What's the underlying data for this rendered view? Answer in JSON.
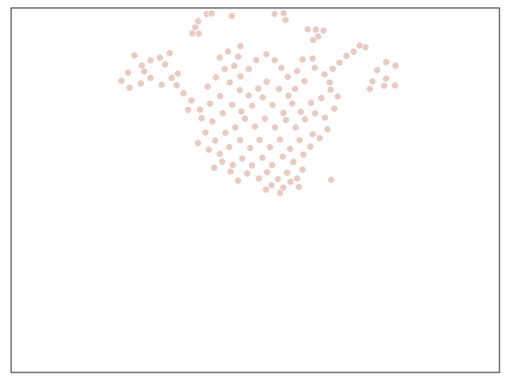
{
  "chart_data": {
    "type": "scatter",
    "title": "",
    "xlabel": "",
    "ylabel": "",
    "xlim": [
      0,
      100
    ],
    "ylim": [
      0,
      100
    ],
    "grid": false,
    "legend": "none",
    "ticks_visible": false,
    "series": [
      {
        "marker_color": "#e8cbc2",
        "marker_edge_color": "#ffffff",
        "points": [
          [
            40.07,
            98.3
          ],
          [
            41.05,
            98.48
          ],
          [
            45.17,
            97.79
          ],
          [
            38.28,
            96.32
          ],
          [
            37.72,
            94.71
          ],
          [
            38.44,
            92.96
          ],
          [
            37.12,
            93.01
          ],
          [
            55.79,
            98.59
          ],
          [
            53.96,
            98.33
          ],
          [
            56.21,
            96.7
          ],
          [
            60.73,
            94.15
          ],
          [
            62.38,
            94.05
          ],
          [
            63.99,
            93.77
          ],
          [
            62.86,
            92.19
          ],
          [
            61.86,
            91.21
          ],
          [
            71.38,
            89.68
          ],
          [
            72.59,
            89.21
          ],
          [
            70.13,
            88.01
          ],
          [
            68.67,
            86.86
          ],
          [
            67.25,
            85.01
          ],
          [
            65.85,
            83.3
          ],
          [
            64.19,
            81.78
          ],
          [
            65.25,
            79.55
          ],
          [
            76.81,
            85.17
          ],
          [
            78.69,
            84.15
          ],
          [
            74.95,
            82.96
          ],
          [
            76.77,
            80.64
          ],
          [
            78.62,
            78.73
          ],
          [
            76.38,
            78.64
          ],
          [
            74.01,
            79.84
          ],
          [
            73.45,
            77.78
          ],
          [
            25.24,
            86.94
          ],
          [
            26.77,
            84.24
          ],
          [
            28.53,
            85.63
          ],
          [
            23.96,
            82.27
          ],
          [
            27.28,
            82.59
          ],
          [
            30.47,
            86.35
          ],
          [
            32.48,
            87.59
          ],
          [
            31.51,
            84.5
          ],
          [
            22.59,
            79.99
          ],
          [
            24.26,
            78.11
          ],
          [
            26.56,
            79.3
          ],
          [
            28.53,
            80.82
          ],
          [
            30.83,
            78.9
          ],
          [
            32.89,
            80.8
          ],
          [
            34.13,
            81.97
          ],
          [
            33.91,
            78.79
          ],
          [
            35.28,
            76.57
          ],
          [
            36.9,
            74.66
          ],
          [
            38.66,
            72.08
          ],
          [
            36.26,
            72.04
          ],
          [
            40.22,
            78.43
          ],
          [
            41.94,
            80.93
          ],
          [
            43.74,
            83.25
          ],
          [
            42.71,
            86.37
          ],
          [
            44.39,
            88.03
          ],
          [
            46.95,
            89.52
          ],
          [
            46.52,
            86.61
          ],
          [
            45.68,
            84.1
          ],
          [
            47.01,
            81.22
          ],
          [
            48.7,
            83.26
          ],
          [
            50.19,
            85.67
          ],
          [
            52.27,
            87.32
          ],
          [
            53.99,
            85.66
          ],
          [
            55.33,
            83.58
          ],
          [
            56.64,
            81.1
          ],
          [
            58.59,
            82.68
          ],
          [
            59.67,
            85.85
          ],
          [
            61.74,
            86.14
          ],
          [
            62.18,
            83.61
          ],
          [
            60.06,
            79.92
          ],
          [
            58.12,
            77.79
          ],
          [
            56.79,
            75.92
          ],
          [
            54.87,
            77.78
          ],
          [
            52.35,
            79.74
          ],
          [
            50.58,
            77.86
          ],
          [
            48.65,
            75.98
          ],
          [
            46.82,
            77.44
          ],
          [
            44.8,
            79.56
          ],
          [
            42.8,
            75.78
          ],
          [
            40.73,
            73.75
          ],
          [
            38.99,
            69.74
          ],
          [
            41.2,
            68.85
          ],
          [
            43.34,
            71.12
          ],
          [
            45.26,
            73.46
          ],
          [
            47.12,
            71.59
          ],
          [
            49.37,
            73.18
          ],
          [
            51.52,
            75.49
          ],
          [
            53.53,
            73.4
          ],
          [
            55.73,
            71.18
          ],
          [
            57.58,
            73.81
          ],
          [
            59.34,
            71.5
          ],
          [
            61.41,
            73.95
          ],
          [
            63.52,
            75.29
          ],
          [
            62.24,
            71.07
          ],
          [
            60.17,
            69.46
          ],
          [
            58.25,
            67.23
          ],
          [
            56.29,
            69.23
          ],
          [
            54.06,
            67.25
          ],
          [
            51.97,
            69.58
          ],
          [
            49.94,
            67.46
          ],
          [
            47.86,
            69.66
          ],
          [
            45.92,
            67.24
          ],
          [
            43.88,
            65.74
          ],
          [
            41.78,
            63.61
          ],
          [
            39.79,
            65.8
          ],
          [
            38.27,
            62.91
          ],
          [
            40.47,
            61.12
          ],
          [
            42.7,
            59.95
          ],
          [
            44.68,
            61.85
          ],
          [
            46.89,
            63.72
          ],
          [
            48.95,
            61.56
          ],
          [
            50.86,
            63.79
          ],
          [
            52.99,
            61.8
          ],
          [
            55.05,
            63.88
          ],
          [
            57.12,
            61.35
          ],
          [
            59.07,
            63.71
          ],
          [
            61.25,
            61.94
          ],
          [
            63.19,
            64.26
          ],
          [
            64.79,
            66.73
          ],
          [
            64.27,
            69.92
          ],
          [
            66.18,
            72.35
          ],
          [
            66.89,
            75.71
          ],
          [
            65.43,
            77.55
          ],
          [
            61.78,
            65.34
          ],
          [
            59.86,
            59.78
          ],
          [
            57.8,
            57.75
          ],
          [
            55.62,
            59.22
          ],
          [
            53.45,
            56.88
          ],
          [
            51.45,
            58.91
          ],
          [
            49.33,
            56.77
          ],
          [
            47.31,
            58.69
          ],
          [
            45.37,
            56.92
          ],
          [
            43.22,
            57.82
          ],
          [
            41.6,
            56.16
          ],
          [
            52.42,
            54.92
          ],
          [
            54.62,
            53.03
          ],
          [
            56.5,
            54.81
          ],
          [
            58.55,
            53.23
          ],
          [
            59.66,
            55.65
          ],
          [
            50.74,
            53.21
          ],
          [
            48.34,
            54.58
          ],
          [
            46.46,
            52.63
          ],
          [
            44.93,
            55.12
          ],
          [
            53.33,
            51.38
          ],
          [
            55.74,
            50.68
          ],
          [
            57.21,
            52.31
          ],
          [
            58.93,
            50.91
          ],
          [
            52.18,
            50.15
          ],
          [
            55.08,
            49.23
          ],
          [
            65.54,
            52.91
          ]
        ]
      }
    ]
  }
}
